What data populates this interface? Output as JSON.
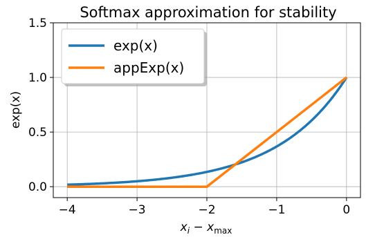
{
  "chart_data": {
    "type": "line",
    "title": "Softmax approximation for stability",
    "xlabel": "x_i − x_max",
    "ylabel": "exp(x)",
    "xlim": [
      -4.2,
      0.2
    ],
    "ylim": [
      -0.1,
      1.5
    ],
    "xticks": [
      -4,
      -3,
      -2,
      -1,
      0
    ],
    "xtick_labels": [
      "−4",
      "−3",
      "−2",
      "−1",
      "0"
    ],
    "yticks": [
      0.0,
      0.5,
      1.0,
      1.5
    ],
    "ytick_labels": [
      "0.0",
      "0.5",
      "1.0",
      "1.5"
    ],
    "grid": true,
    "legend_position": "top-left",
    "series": [
      {
        "name": "exp(x)",
        "color": "#1f77b4",
        "x": [
          -4,
          -3.5,
          -3,
          -2.5,
          -2,
          -1.75,
          -1.5,
          -1.25,
          -1,
          -0.75,
          -0.5,
          -0.25,
          0
        ],
        "y": [
          0.018,
          0.03,
          0.05,
          0.082,
          0.135,
          0.174,
          0.223,
          0.287,
          0.368,
          0.472,
          0.607,
          0.779,
          1.0
        ]
      },
      {
        "name": "appExp(x)",
        "color": "#ff7f0e",
        "x": [
          -4,
          -2,
          0
        ],
        "y": [
          0.0,
          0.0,
          1.0
        ]
      }
    ]
  }
}
